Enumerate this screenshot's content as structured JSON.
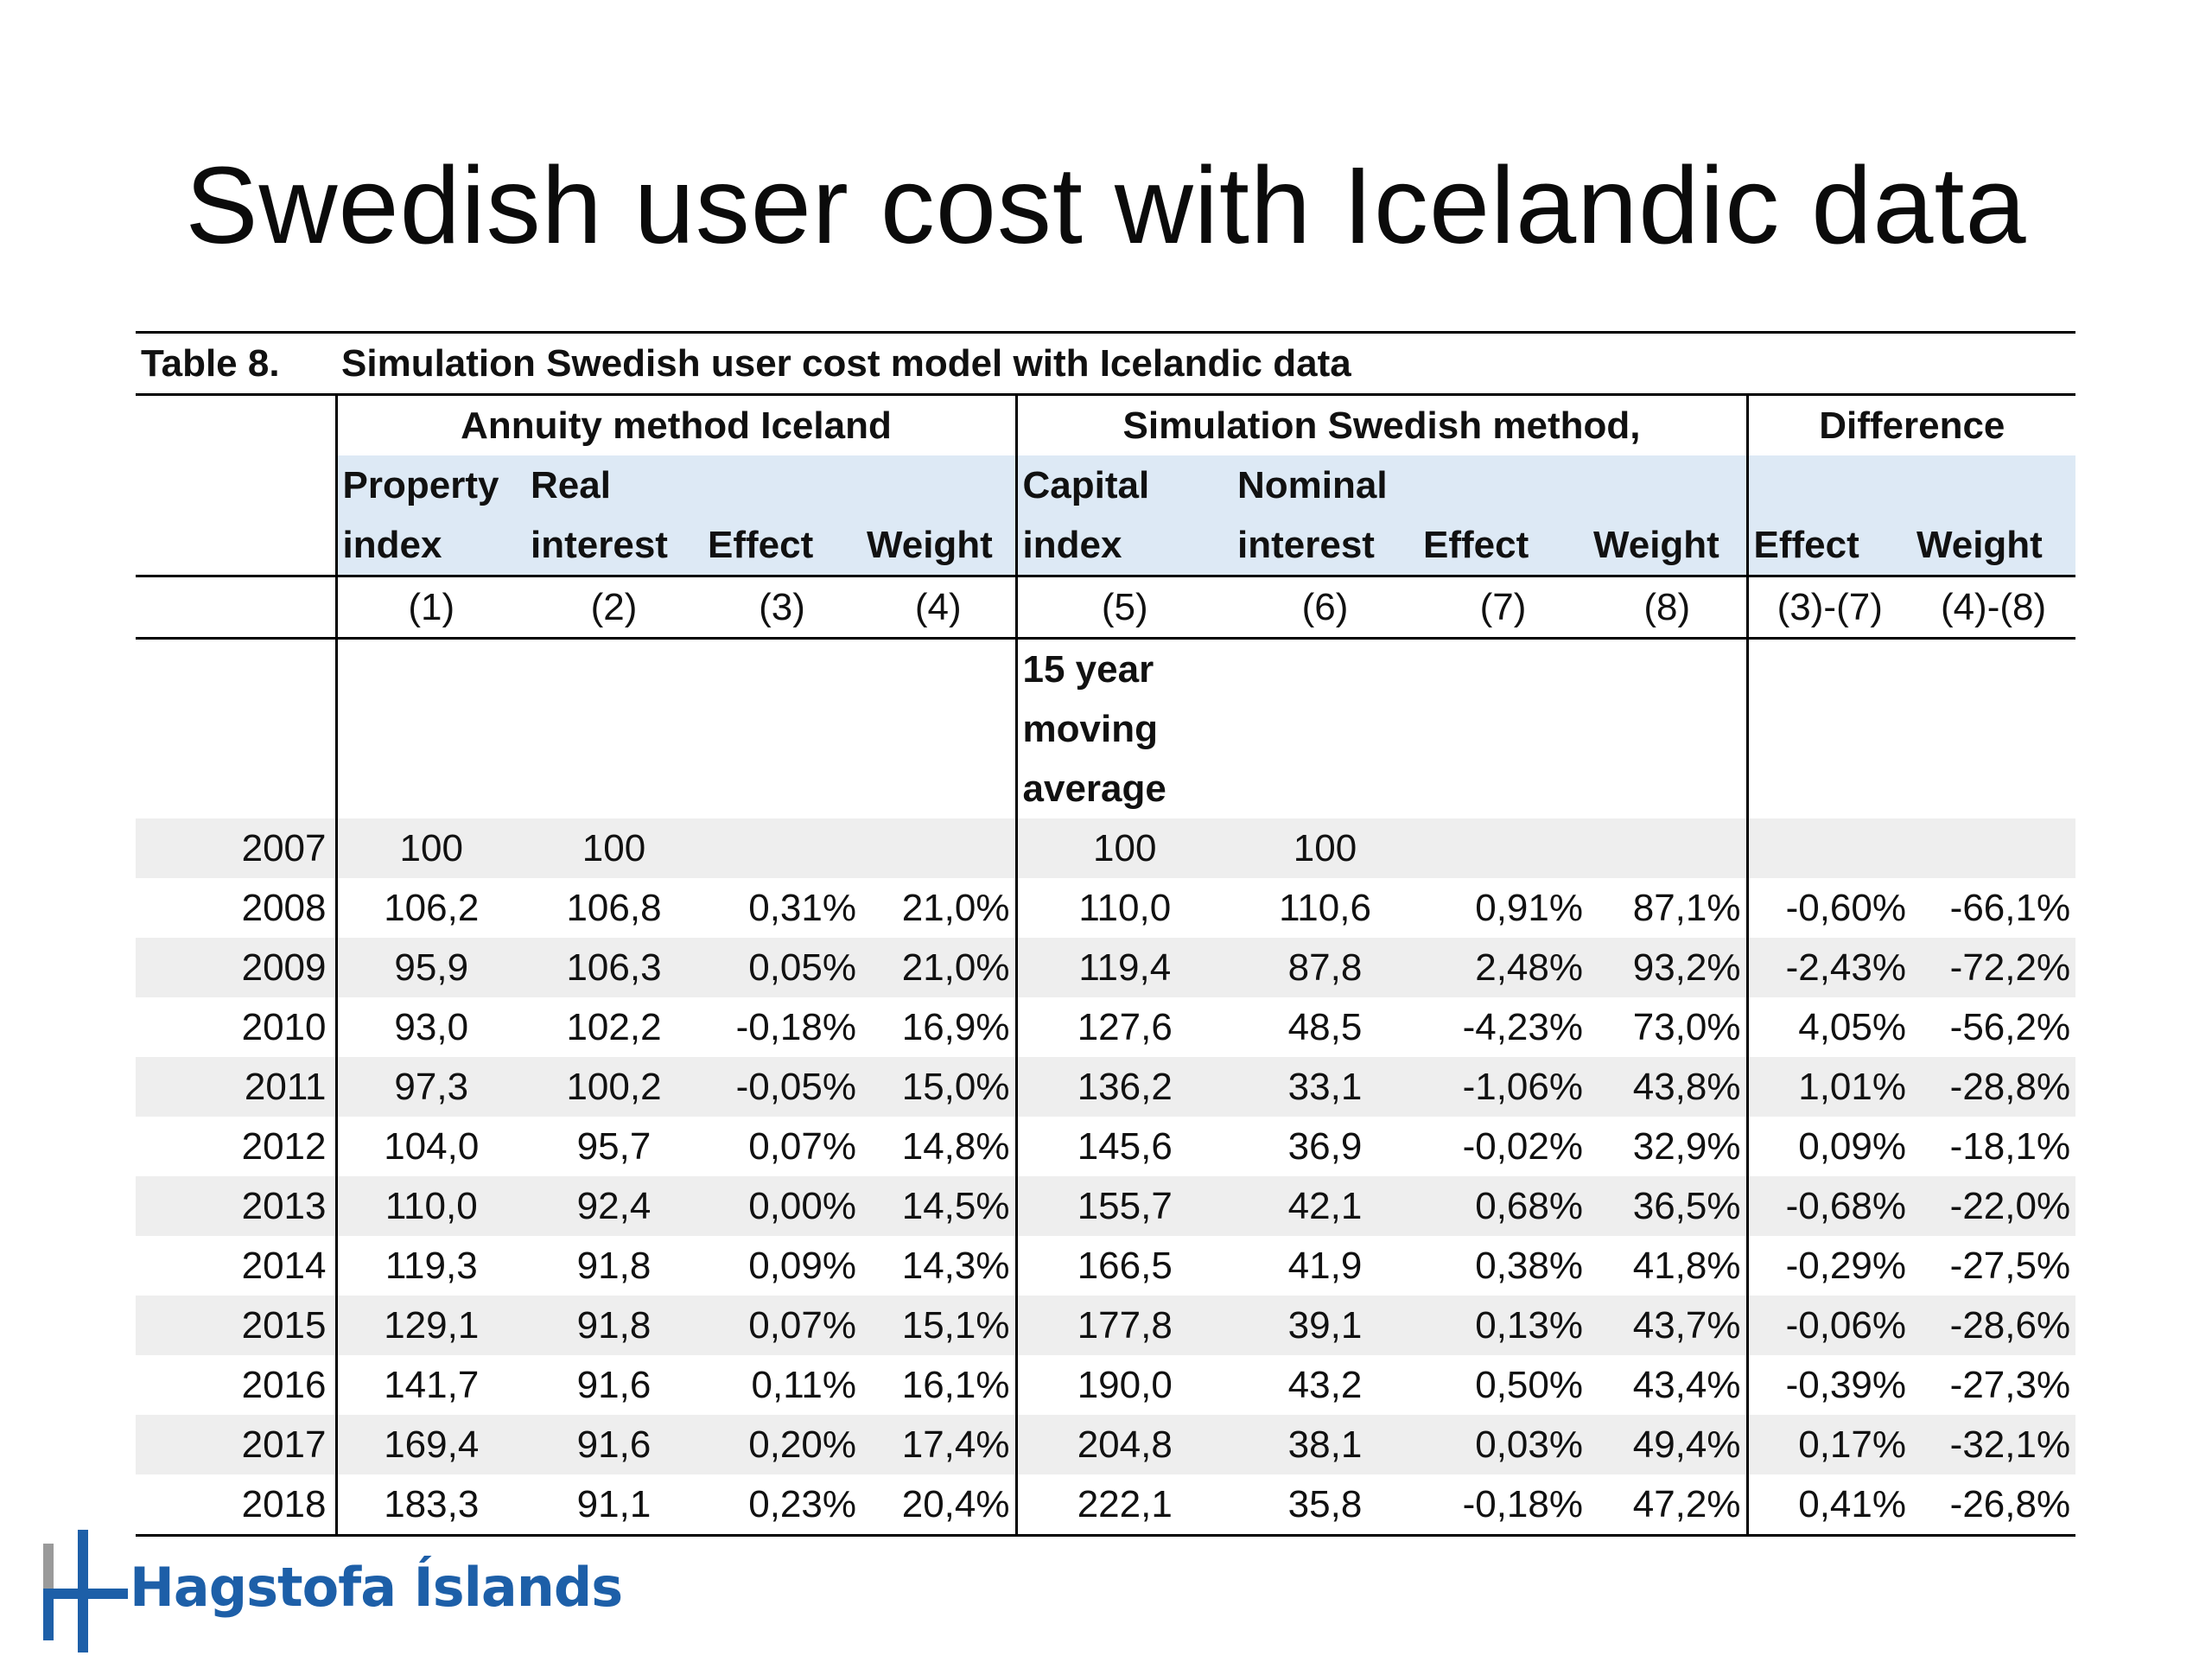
{
  "slide": {
    "title": "Swedish user cost with Icelandic data"
  },
  "table": {
    "number": "Table 8.",
    "caption": "Simulation Swedish user cost model with Icelandic data",
    "groups": [
      "Annuity method Iceland",
      "Simulation Swedish method,",
      "Difference"
    ],
    "columns": [
      [
        "Property",
        "index"
      ],
      [
        "Real",
        "interest"
      ],
      [
        "",
        "Effect"
      ],
      [
        "",
        "Weight"
      ],
      [
        "Capital",
        "index"
      ],
      [
        "Nominal",
        "interest"
      ],
      [
        "",
        "Effect"
      ],
      [
        "",
        "Weight"
      ],
      [
        "",
        "Effect"
      ],
      [
        "",
        "Weight"
      ]
    ],
    "column_numbers": [
      "(1)",
      "(2)",
      "(3)",
      "(4)",
      "(5)",
      "(6)",
      "(7)",
      "(8)",
      "(3)-(7)",
      "(4)-(8)"
    ],
    "note": [
      "15 year",
      "moving",
      "average"
    ],
    "rows": [
      [
        "2007",
        "100",
        "100",
        "",
        "",
        "100",
        "100",
        "",
        "",
        "",
        ""
      ],
      [
        "2008",
        "106,2",
        "106,8",
        "0,31%",
        "21,0%",
        "110,0",
        "110,6",
        "0,91%",
        "87,1%",
        "-0,60%",
        "-66,1%"
      ],
      [
        "2009",
        "95,9",
        "106,3",
        "0,05%",
        "21,0%",
        "119,4",
        "87,8",
        "2,48%",
        "93,2%",
        "-2,43%",
        "-72,2%"
      ],
      [
        "2010",
        "93,0",
        "102,2",
        "-0,18%",
        "16,9%",
        "127,6",
        "48,5",
        "-4,23%",
        "73,0%",
        "4,05%",
        "-56,2%"
      ],
      [
        "2011",
        "97,3",
        "100,2",
        "-0,05%",
        "15,0%",
        "136,2",
        "33,1",
        "-1,06%",
        "43,8%",
        "1,01%",
        "-28,8%"
      ],
      [
        "2012",
        "104,0",
        "95,7",
        "0,07%",
        "14,8%",
        "145,6",
        "36,9",
        "-0,02%",
        "32,9%",
        "0,09%",
        "-18,1%"
      ],
      [
        "2013",
        "110,0",
        "92,4",
        "0,00%",
        "14,5%",
        "155,7",
        "42,1",
        "0,68%",
        "36,5%",
        "-0,68%",
        "-22,0%"
      ],
      [
        "2014",
        "119,3",
        "91,8",
        "0,09%",
        "14,3%",
        "166,5",
        "41,9",
        "0,38%",
        "41,8%",
        "-0,29%",
        "-27,5%"
      ],
      [
        "2015",
        "129,1",
        "91,8",
        "0,07%",
        "15,1%",
        "177,8",
        "39,1",
        "0,13%",
        "43,7%",
        "-0,06%",
        "-28,6%"
      ],
      [
        "2016",
        "141,7",
        "91,6",
        "0,11%",
        "16,1%",
        "190,0",
        "43,2",
        "0,50%",
        "43,4%",
        "-0,39%",
        "-27,3%"
      ],
      [
        "2017",
        "169,4",
        "91,6",
        "0,20%",
        "17,4%",
        "204,8",
        "38,1",
        "0,03%",
        "49,4%",
        "0,17%",
        "-32,1%"
      ],
      [
        "2018",
        "183,3",
        "91,1",
        "0,23%",
        "20,4%",
        "222,1",
        "35,8",
        "-0,18%",
        "47,2%",
        "0,41%",
        "-26,8%"
      ]
    ]
  },
  "logo": {
    "text": "Hagstofa Íslands"
  },
  "colors": {
    "header_fill": "#dde9f5",
    "row_shade": "#eeeeee",
    "logo_blue": "#1d5fa8",
    "logo_grey": "#9a9a9a"
  }
}
